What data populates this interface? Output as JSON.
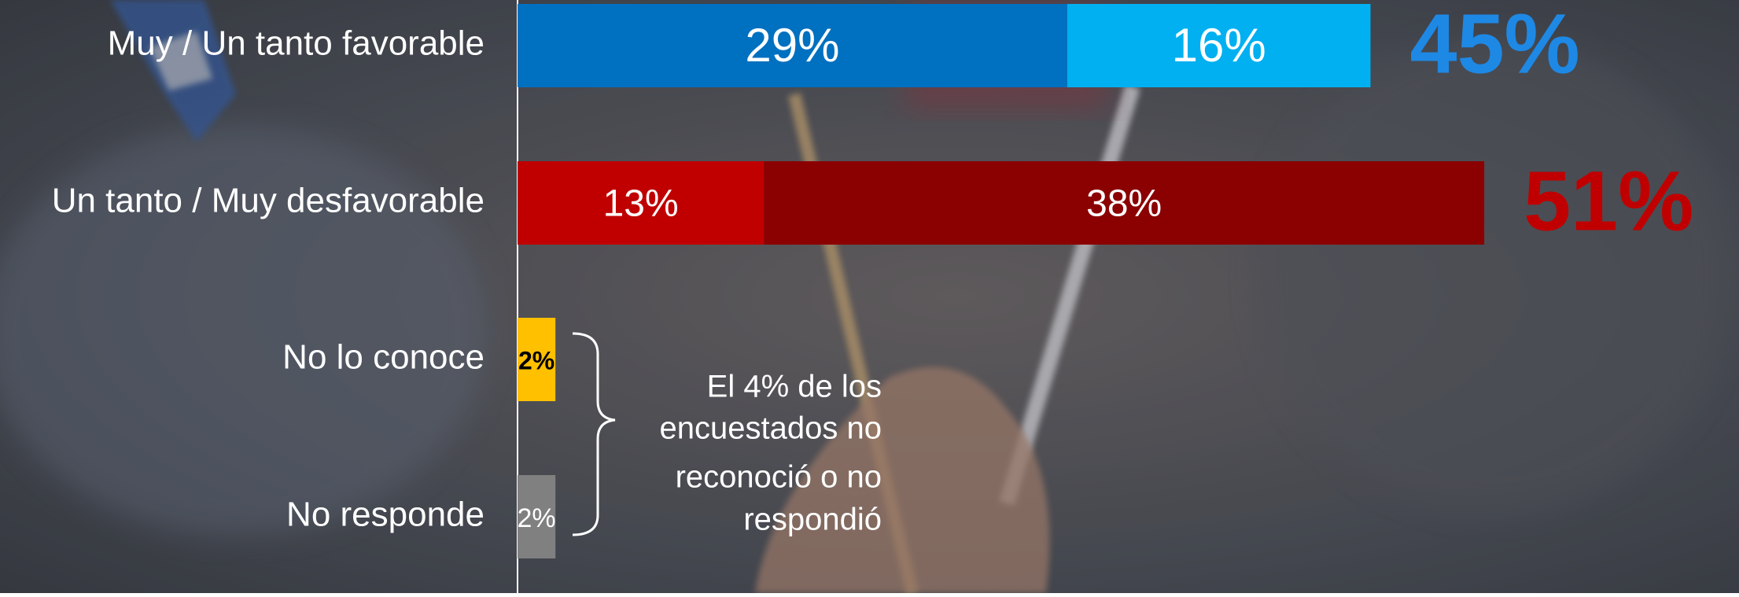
{
  "chart_data": {
    "type": "stacked-bar",
    "orientation": "horizontal",
    "categories": [
      "Muy / Un tanto favorable",
      "Un tanto / Muy desfavorable",
      "No lo conoce",
      "No responde"
    ],
    "series": [
      {
        "color": "#0070c0",
        "label_color": "#ffffff",
        "values": [
          29,
          null,
          null,
          null
        ],
        "value_labels": [
          "29%",
          null,
          null,
          null
        ]
      },
      {
        "color": "#00b0f0",
        "label_color": "#ffffff",
        "values": [
          16,
          null,
          null,
          null
        ],
        "value_labels": [
          "16%",
          null,
          null,
          null
        ]
      },
      {
        "color": "#c00000",
        "label_color": "#ffffff",
        "values": [
          null,
          13,
          null,
          null
        ],
        "value_labels": [
          null,
          "13%",
          null,
          null
        ]
      },
      {
        "color": "#8b0000",
        "label_color": "#ffffff",
        "values": [
          null,
          38,
          null,
          null
        ],
        "value_labels": [
          null,
          "38%",
          null,
          null
        ]
      },
      {
        "color": "#ffc000",
        "label_color": "#000000",
        "values": [
          null,
          null,
          2,
          null
        ],
        "value_labels": [
          null,
          null,
          "2%",
          null
        ]
      },
      {
        "color": "#808080",
        "label_color": "#ffffff",
        "values": [
          null,
          null,
          null,
          2
        ],
        "value_labels": [
          null,
          null,
          null,
          "2%"
        ]
      }
    ],
    "totals": [
      45,
      51,
      null,
      null
    ],
    "total_labels": [
      "45%",
      "51%",
      null,
      null
    ],
    "total_colors": [
      "#1e88e5",
      "#c00000",
      null,
      null
    ],
    "annotation": [
      "El 4% de los",
      "encuestados no",
      "reconoció o no",
      "respondió"
    ]
  }
}
